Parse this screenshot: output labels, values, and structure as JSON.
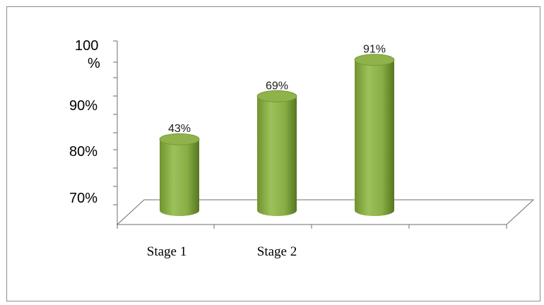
{
  "chart_data": {
    "type": "bar",
    "style": "3d-cylinder",
    "categories": [
      "Stage 1",
      "Stage 2",
      ""
    ],
    "values": [
      43,
      69,
      91
    ],
    "data_labels": [
      "43%",
      "69%",
      "91%"
    ],
    "y_tick_labels": [
      "100\n%",
      "90%",
      "80%",
      "70%"
    ],
    "title": "",
    "xlabel": "",
    "ylabel": "",
    "grid": false,
    "legend": "none",
    "colors": {
      "bar_light": "#9dc15a",
      "bar_mid": "#7ea33a",
      "bar_dark": "#56761f",
      "bar_top": "#8fb24a",
      "axis": "#6e6e6e",
      "frame": "#8c8c8c"
    }
  }
}
